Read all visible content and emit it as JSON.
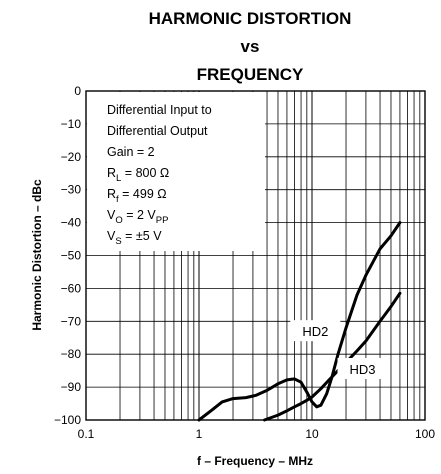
{
  "chart_data": {
    "type": "line",
    "title_lines": [
      "HARMONIC DISTORTION",
      "vs",
      "FREQUENCY"
    ],
    "xlabel": "f – Frequency – MHz",
    "ylabel": "Harmonic Distortion – dBc",
    "xscale": "log",
    "xlim": [
      0.1,
      100
    ],
    "ylim": [
      -100,
      0
    ],
    "x_ticks": [
      "0.1",
      "1",
      "10",
      "100"
    ],
    "y_ticks": [
      "0",
      "−10",
      "−20",
      "−30",
      "−40",
      "−50",
      "−60",
      "−70",
      "−80",
      "−90",
      "−100"
    ],
    "grid": true,
    "annotation_lines": [
      {
        "main": "Differential Input to"
      },
      {
        "main": "Differential Output"
      },
      {
        "main": "Gain = 2"
      },
      {
        "main": "R",
        "sub": "L",
        "rest": " = 800 Ω"
      },
      {
        "main": "R",
        "sub": "f",
        "rest": " = 499 Ω"
      },
      {
        "main": "V",
        "sub": "O",
        "rest": " = 2 V",
        "sub2": "PP"
      },
      {
        "main": "V",
        "sub": "S",
        "rest": " = ±5 V"
      }
    ],
    "series": [
      {
        "name": "HD2",
        "x": [
          1.0,
          1.3,
          1.6,
          2.0,
          2.6,
          3.2,
          4.0,
          5.0,
          6.0,
          7.0,
          8.0,
          9.0,
          10,
          11,
          12,
          13.5,
          15,
          17,
          20,
          25,
          30,
          40,
          50,
          60
        ],
        "y": [
          -100,
          -97,
          -94.5,
          -93.5,
          -93.2,
          -92.5,
          -91,
          -89,
          -87.8,
          -87.5,
          -88.5,
          -91.5,
          -94.5,
          -96,
          -95.5,
          -92,
          -87,
          -80,
          -72,
          -62,
          -56,
          -48,
          -44,
          -40
        ]
      },
      {
        "name": "HD3",
        "x": [
          3.8,
          5,
          6,
          7,
          8,
          9,
          10,
          12,
          14,
          17,
          20,
          25,
          30,
          40,
          50,
          60
        ],
        "y": [
          -100,
          -98.5,
          -97.2,
          -96,
          -95,
          -94,
          -93,
          -90.5,
          -88,
          -85,
          -82.5,
          -79,
          -76,
          -70,
          -65.5,
          -61.5
        ]
      }
    ]
  }
}
